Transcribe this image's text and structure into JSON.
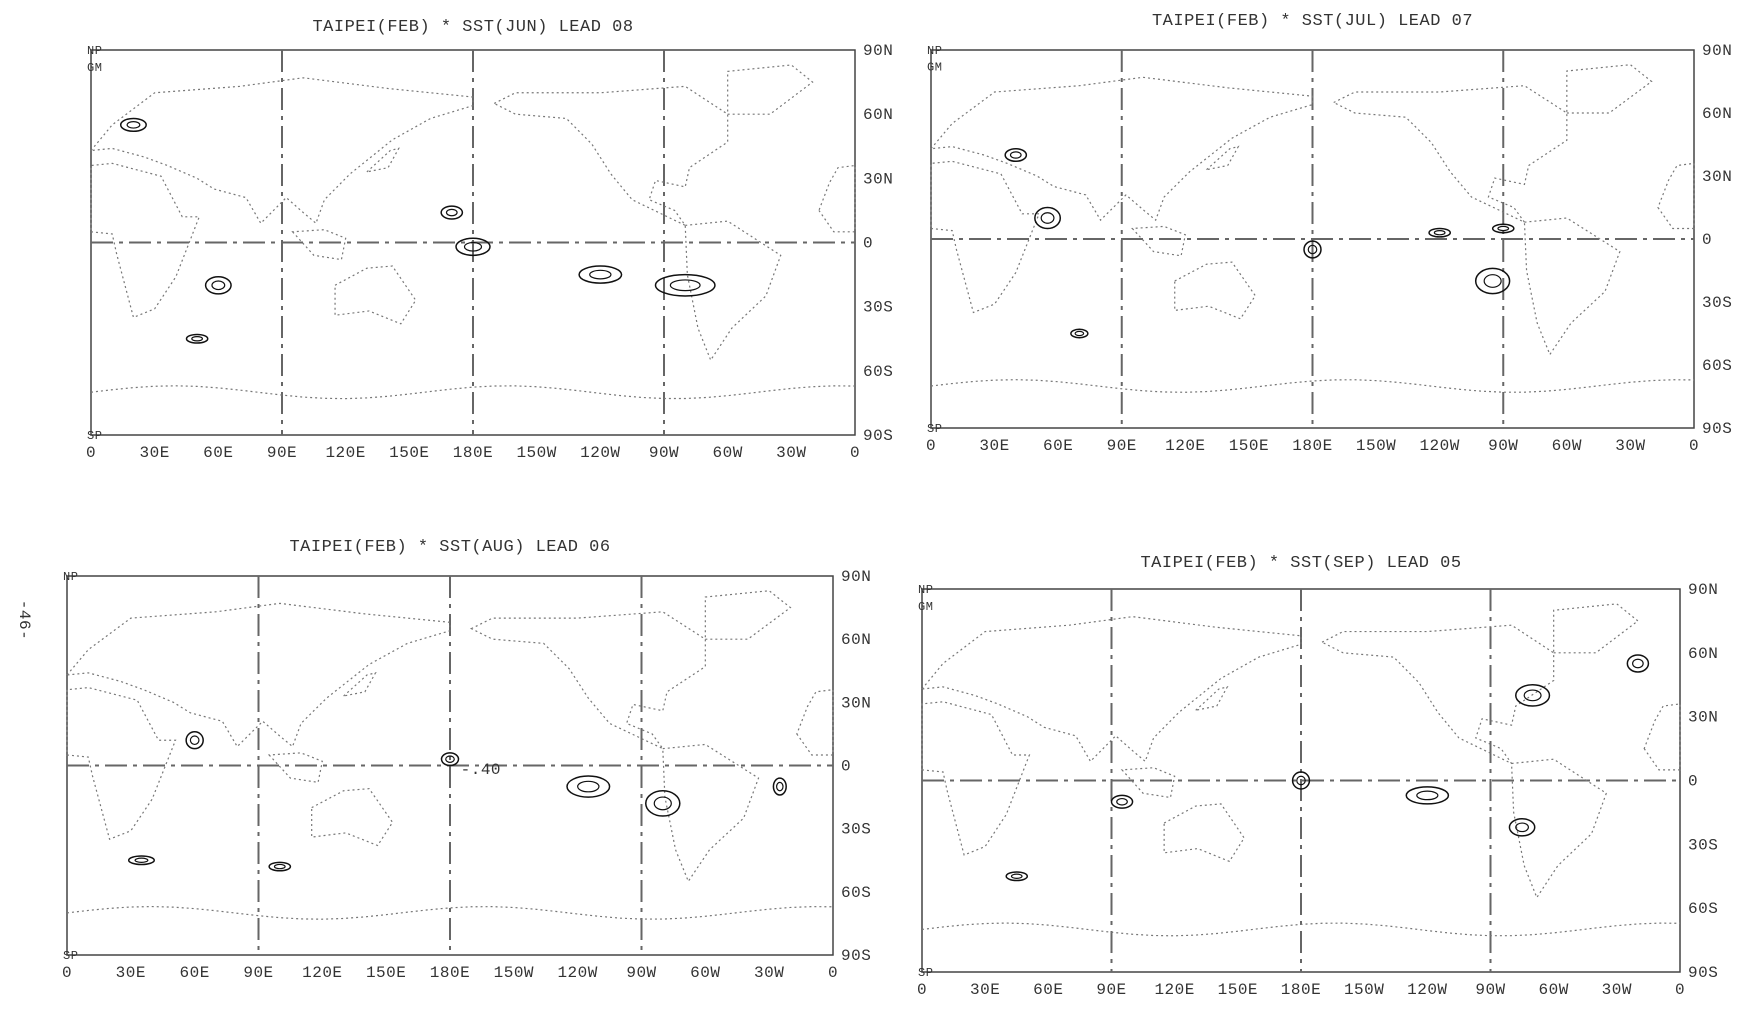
{
  "page_number": "-46-",
  "panels": [
    {
      "title": "TAIPEI(FEB) * SST(JUN) LEAD 08",
      "x_labels": [
        "0",
        "30E",
        "60E",
        "90E",
        "120E",
        "150E",
        "180E",
        "150W",
        "120W",
        "90W",
        "60W",
        "30W",
        "0"
      ],
      "y_labels": [
        "90N",
        "60N",
        "30N",
        "0",
        "30S",
        "60S",
        "90S"
      ],
      "corner_labels": [
        "NP",
        "GM",
        "SP"
      ]
    },
    {
      "title": "TAIPEI(FEB) * SST(JUL) LEAD 07",
      "x_labels": [
        "0",
        "30E",
        "60E",
        "90E",
        "120E",
        "150E",
        "180E",
        "150W",
        "120W",
        "90W",
        "60W",
        "30W",
        "0"
      ],
      "y_labels": [
        "90N",
        "60N",
        "30N",
        "0",
        "30S",
        "60S",
        "90S"
      ],
      "corner_labels": [
        "NP",
        "GM",
        "SP"
      ]
    },
    {
      "title": "TAIPEI(FEB) * SST(AUG) LEAD 06",
      "x_labels": [
        "0",
        "30E",
        "60E",
        "90E",
        "120E",
        "150E",
        "180E",
        "150W",
        "120W",
        "90W",
        "60W",
        "30W",
        "0"
      ],
      "y_labels": [
        "90N",
        "60N",
        "30N",
        "0",
        "30S",
        "60S",
        "90S"
      ],
      "corner_labels": [
        "NP",
        "SP"
      ],
      "annotations": [
        "-.40"
      ]
    },
    {
      "title": "TAIPEI(FEB) * SST(SEP) LEAD 05",
      "x_labels": [
        "0",
        "30E",
        "60E",
        "90E",
        "120E",
        "150E",
        "180E",
        "150W",
        "120W",
        "90W",
        "60W",
        "30W",
        "0"
      ],
      "y_labels": [
        "90N",
        "60N",
        "30N",
        "0",
        "30S",
        "60S",
        "90S"
      ],
      "corner_labels": [
        "NP",
        "GM",
        "SP"
      ]
    }
  ]
}
